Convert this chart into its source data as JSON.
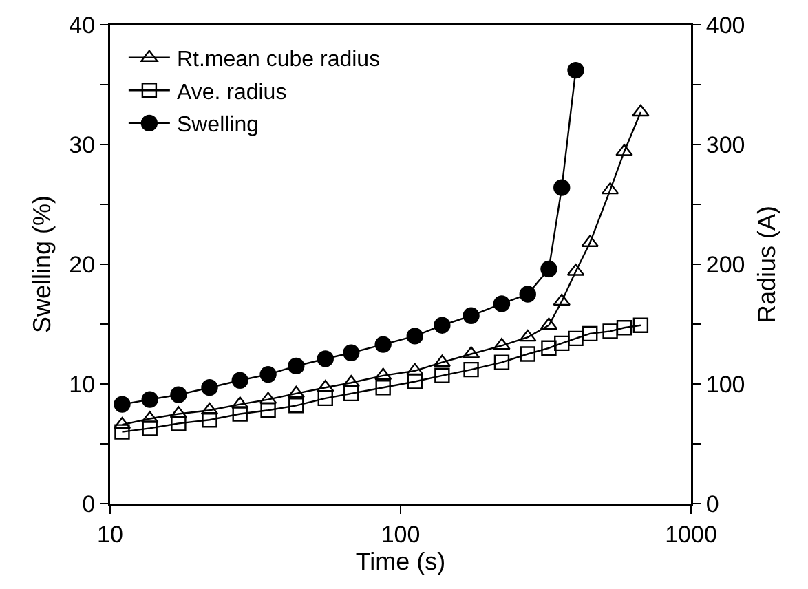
{
  "chart_data": {
    "type": "line",
    "xlabel": "Time (s)",
    "ylabel": "Swelling (%)",
    "y2label": "Radius (A)",
    "log": "x",
    "grid": false,
    "legend": "top left",
    "line_style": "solid",
    "xlim": [
      10,
      1000
    ],
    "xticks": [
      10,
      100,
      1000
    ],
    "ylim": [
      0,
      40
    ],
    "yticks": [
      0,
      {
        "value": 5,
        "label": null
      },
      10,
      {
        "value": 15,
        "label": null
      },
      20,
      {
        "value": 25,
        "label": null
      },
      30,
      {
        "value": 35,
        "label": null
      },
      40
    ],
    "y2lim": [
      0,
      400
    ],
    "y2ticks": [
      0,
      {
        "value": 50,
        "label": null
      },
      100,
      {
        "value": 150,
        "label": null
      },
      200,
      {
        "value": 250,
        "label": null
      },
      300,
      {
        "value": 350,
        "label": null
      },
      400
    ],
    "series": [
      {
        "name": "Rt.mean cube radius",
        "color": "#000000",
        "marker": "triangle",
        "axis": "y2",
        "x": [
          11.0,
          13.7,
          17.2,
          22.0,
          28.0,
          35.0,
          43.7,
          55.1,
          67.6,
          87.1,
          112,
          139,
          175,
          223,
          274,
          324,
          359,
          401,
          449,
          527,
          589,
          671
        ],
        "values": [
          66,
          71,
          75,
          78,
          83,
          87,
          92,
          97,
          101,
          107,
          111,
          118,
          125,
          132,
          139,
          149,
          169,
          194,
          218,
          262,
          294,
          327
        ]
      },
      {
        "name": "Ave. radius",
        "color": "#000000",
        "marker": "square",
        "axis": "y2",
        "x": [
          11.0,
          13.7,
          17.2,
          22.0,
          28.0,
          35.0,
          43.7,
          55.1,
          67.6,
          87.1,
          112,
          139,
          175,
          223,
          274,
          324,
          359,
          401,
          449,
          527,
          589,
          671
        ],
        "values": [
          60,
          63,
          67,
          70,
          75,
          78,
          82,
          88,
          92,
          97,
          102,
          107,
          112,
          118,
          125,
          130,
          134,
          138,
          142,
          144,
          147,
          149
        ]
      },
      {
        "name": "Swelling",
        "color": "#000000",
        "marker": "circle",
        "axis": "y",
        "x": [
          11.0,
          13.7,
          17.2,
          22.0,
          28.0,
          35.0,
          43.7,
          55.1,
          67.6,
          87.1,
          112,
          139,
          175,
          223,
          274,
          324,
          359,
          401
        ],
        "values": [
          8.3,
          8.7,
          9.1,
          9.7,
          10.3,
          10.8,
          11.5,
          12.1,
          12.6,
          13.3,
          14.0,
          14.9,
          15.7,
          16.7,
          17.5,
          19.6,
          26.4,
          36.2
        ]
      }
    ]
  }
}
